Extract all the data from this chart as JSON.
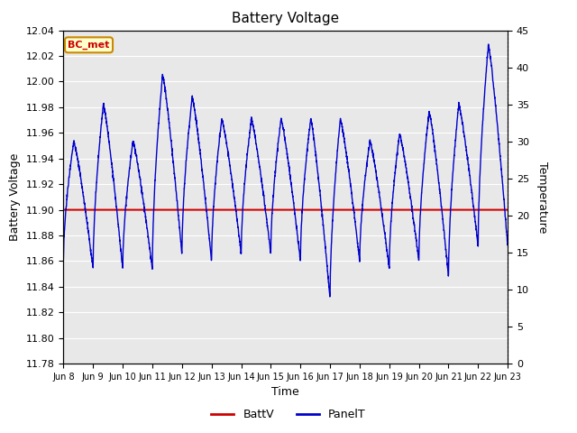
{
  "title": "Battery Voltage",
  "xlabel": "Time",
  "ylabel_left": "Battery Voltage",
  "ylabel_right": "Temperature",
  "annotation_text": "BC_met",
  "ylim_left": [
    11.78,
    12.04
  ],
  "ylim_right": [
    0,
    45
  ],
  "yticks_left": [
    11.78,
    11.8,
    11.82,
    11.84,
    11.86,
    11.88,
    11.9,
    11.92,
    11.94,
    11.96,
    11.98,
    12.0,
    12.02,
    12.04
  ],
  "yticks_right": [
    0,
    5,
    10,
    15,
    20,
    25,
    30,
    35,
    40,
    45
  ],
  "batt_voltage_constant": 11.9,
  "background_color": "#ffffff",
  "plot_bg_color": "#e8e8e8",
  "grid_color": "#ffffff",
  "line_color_batt": "#cc0000",
  "line_color_panel": "#0000cc",
  "annotation_bg": "#ffffcc",
  "annotation_border": "#cc8800",
  "annotation_text_color": "#cc0000",
  "day_peaks_temp": [
    30,
    35,
    30,
    39,
    36,
    33,
    33,
    33,
    33,
    33,
    30,
    31,
    34,
    35,
    43
  ],
  "day_troughs_temp": [
    14,
    13,
    13,
    13,
    15,
    14,
    15,
    15,
    14,
    9,
    14,
    13,
    14,
    12,
    16
  ],
  "xtick_labels": [
    "Jun 8",
    "Jun 9",
    "Jun 10",
    "Jun 11",
    "Jun 12",
    "Jun 13",
    "Jun 14",
    "Jun 15",
    "Jun 16",
    "Jun 17",
    "Jun 18",
    "Jun 19",
    "Jun 20",
    "Jun 21",
    "Jun 22",
    "Jun 23"
  ]
}
